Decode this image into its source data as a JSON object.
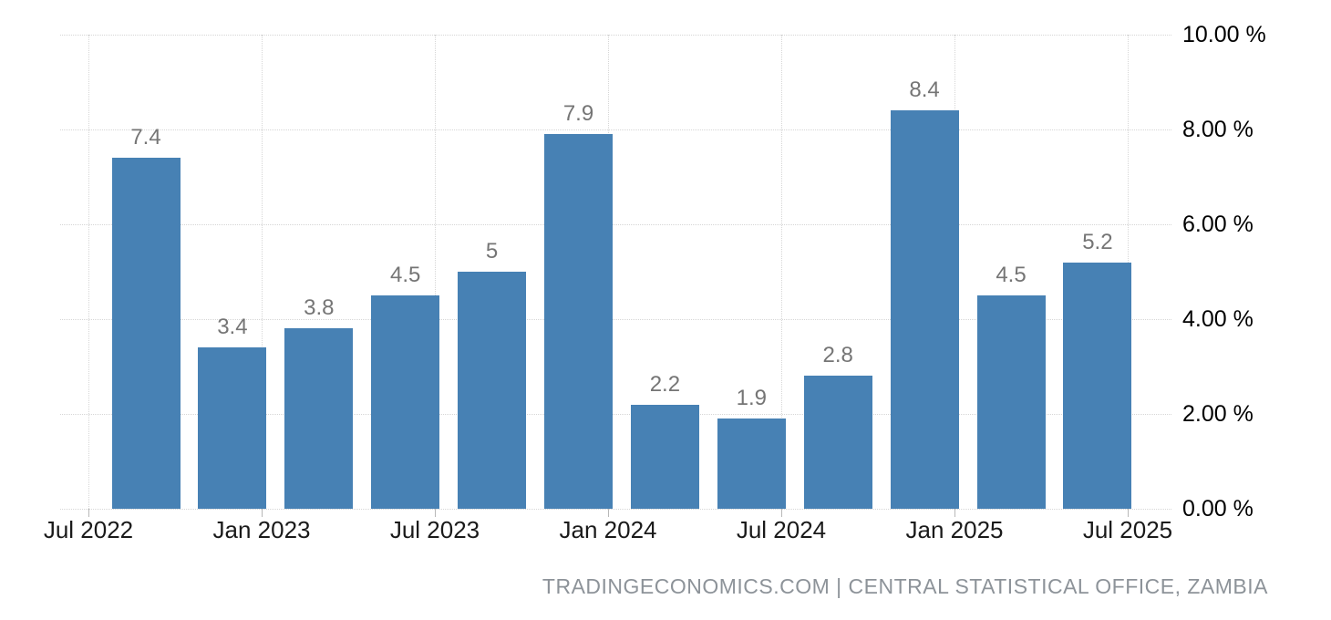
{
  "chart_data": {
    "type": "bar",
    "title": "",
    "x": [
      "Sep 2022",
      "Dec 2022",
      "Mar 2023",
      "Jun 2023",
      "Sep 2023",
      "Dec 2023",
      "Mar 2024",
      "Jun 2024",
      "Sep 2024",
      "Dec 2024",
      "Mar 2025",
      "Jun 2025"
    ],
    "values": [
      7.4,
      3.4,
      3.8,
      4.5,
      5,
      7.9,
      2.2,
      1.9,
      2.8,
      8.4,
      4.5,
      5.2
    ],
    "data_labels": [
      "7.4",
      "3.4",
      "3.8",
      "4.5",
      "5",
      "7.9",
      "2.2",
      "1.9",
      "2.8",
      "8.4",
      "4.5",
      "5.2"
    ],
    "xtick_labels": [
      "Jul 2022",
      "Jan 2023",
      "Jul 2023",
      "Jan 2024",
      "Jul 2024",
      "Jan 2025",
      "Jul 2025"
    ],
    "yticks": [
      {
        "value": 0,
        "label": "0.00 %"
      },
      {
        "value": 2,
        "label": "2.00 %"
      },
      {
        "value": 4,
        "label": "4.00 %"
      },
      {
        "value": 6,
        "label": "6.00 %"
      },
      {
        "value": 8,
        "label": "8.00 %"
      },
      {
        "value": 10,
        "label": "10.00 %"
      }
    ],
    "ylim": [
      0,
      10
    ],
    "xlabel": "",
    "ylabel": "",
    "grid": "dotted, horizontal and vertical",
    "legend": "none",
    "yaxis_position": "right",
    "bar_color": "#4781b4",
    "data_label_color": "#757575",
    "gridline_color": "#d6d6d6"
  },
  "attribution": {
    "text": "TRADINGECONOMICS.COM | CENTRAL STATISTICAL OFFICE, ZAMBIA"
  }
}
